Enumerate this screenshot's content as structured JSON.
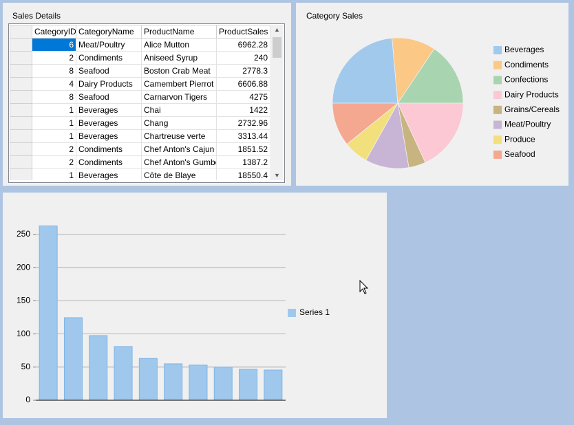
{
  "table": {
    "title": "Sales Details",
    "columns": [
      "CategoryID",
      "CategoryName",
      "ProductName",
      "ProductSales"
    ],
    "rows": [
      [
        6,
        "Meat/Poultry",
        "Alice Mutton",
        6962.28
      ],
      [
        2,
        "Condiments",
        "Aniseed Syrup",
        240
      ],
      [
        8,
        "Seafood",
        "Boston Crab Meat",
        2778.3
      ],
      [
        4,
        "Dairy Products",
        "Camembert Pierrot",
        6606.88
      ],
      [
        8,
        "Seafood",
        "Carnarvon Tigers",
        4275
      ],
      [
        1,
        "Beverages",
        "Chai",
        1422
      ],
      [
        1,
        "Beverages",
        "Chang",
        2732.96
      ],
      [
        1,
        "Beverages",
        "Chartreuse verte",
        3313.44
      ],
      [
        2,
        "Condiments",
        "Chef Anton's Cajun Se",
        1851.52
      ],
      [
        2,
        "Condiments",
        "Chef Anton's Gumbo M",
        1387.2
      ],
      [
        1,
        "Beverages",
        "Côte de Blaye",
        18550.4
      ]
    ]
  },
  "chart_data": [
    {
      "type": "pie",
      "title": "Category Sales",
      "categories": [
        "Beverages",
        "Condiments",
        "Confections",
        "Dairy Products",
        "Grains/Cereals",
        "Meat/Poultry",
        "Produce",
        "Seafood"
      ],
      "values": [
        23.6,
        10.8,
        15.6,
        18.1,
        4.2,
        10.8,
        6.1,
        10.8
      ],
      "colors": [
        "#a1c9ec",
        "#fbc885",
        "#a8d4b0",
        "#fbc8d4",
        "#c8b480",
        "#c8b4d4",
        "#f2e07c",
        "#f4a890"
      ],
      "legend": "right"
    },
    {
      "type": "bar",
      "categories": [
        null,
        null,
        null,
        null,
        null,
        null,
        null,
        null,
        null,
        null
      ],
      "series": [
        {
          "name": "Series 1",
          "color": "#a0c8ec",
          "values": [
            263,
            124.5,
            97.5,
            81,
            63,
            55,
            53,
            50,
            46.7,
            45.6
          ]
        }
      ],
      "ylim": [
        0,
        275
      ],
      "yticks": [
        0,
        50,
        100,
        150,
        200,
        250
      ],
      "grid": true,
      "legend": "right"
    }
  ]
}
